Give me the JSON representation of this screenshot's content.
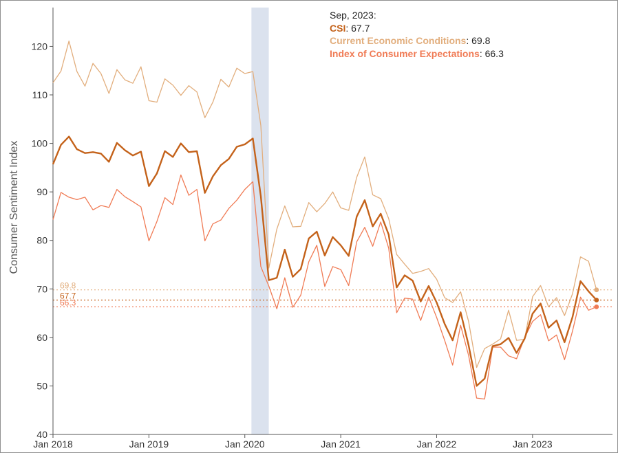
{
  "tooltip": {
    "date": "Sep, 2023:",
    "rows": [
      {
        "name": "CSI",
        "value": "67.7",
        "color": "#c4621a"
      },
      {
        "name": "Current Economic Conditions",
        "value": "69.8",
        "color": "#e2ae7d"
      },
      {
        "name": "Index of Consumer Expectations",
        "value": "66.3",
        "color": "#f07b55"
      }
    ]
  },
  "chart_data": {
    "type": "line",
    "title": "",
    "xlabel": "",
    "ylabel": "Consumer Sentiment Index",
    "ylim": [
      40,
      128
    ],
    "yticks": [
      40,
      50,
      60,
      70,
      80,
      90,
      100,
      110,
      120
    ],
    "xlim": [
      "2018-01",
      "2023-11"
    ],
    "xticks": [
      {
        "label": "Jan 2018",
        "date": "2018-01"
      },
      {
        "label": "Jan 2019",
        "date": "2019-01"
      },
      {
        "label": "Jan 2020",
        "date": "2020-01"
      },
      {
        "label": "Jan 2021",
        "date": "2021-01"
      },
      {
        "label": "Jan 2022",
        "date": "2022-01"
      },
      {
        "label": "Jan 2023",
        "date": "2023-01"
      }
    ],
    "x_start": "2018-01",
    "recession_shading": {
      "start": "2020-02",
      "end": "2020-04",
      "color": "#dbe2ee"
    },
    "end_labels": [
      {
        "label": "69.8",
        "value": 69.8,
        "color": "#e2ae7d"
      },
      {
        "label": "67.7",
        "value": 67.7,
        "color": "#c4621a"
      },
      {
        "label": "66.3",
        "value": 66.3,
        "color": "#f07b55"
      }
    ],
    "series": [
      {
        "name": "CSI",
        "color": "#c4621a",
        "values": [
          95.7,
          99.7,
          101.4,
          98.8,
          98.0,
          98.2,
          97.9,
          96.2,
          100.1,
          98.6,
          97.5,
          98.3,
          91.2,
          93.8,
          98.4,
          97.2,
          100.0,
          98.2,
          98.4,
          89.8,
          93.2,
          95.5,
          96.8,
          99.3,
          99.8,
          101.0,
          89.1,
          71.8,
          72.3,
          78.1,
          72.5,
          74.1,
          80.4,
          81.8,
          76.9,
          80.7,
          79.0,
          76.8,
          84.9,
          88.3,
          82.9,
          85.5,
          81.2,
          70.3,
          72.8,
          71.7,
          67.4,
          70.6,
          67.2,
          62.8,
          59.4,
          65.2,
          58.4,
          50.0,
          51.5,
          58.2,
          58.6,
          59.9,
          56.8,
          59.7,
          64.9,
          67.0,
          62.0,
          63.5,
          59.0,
          64.2,
          71.6,
          69.5,
          67.7
        ]
      },
      {
        "name": "Current Economic Conditions",
        "color": "#e2ae7d",
        "values": [
          112.5,
          114.9,
          121.1,
          114.8,
          111.8,
          116.5,
          114.4,
          110.3,
          115.2,
          113.1,
          112.4,
          115.8,
          108.8,
          108.5,
          113.3,
          112.0,
          109.9,
          111.9,
          110.6,
          105.3,
          108.5,
          113.2,
          111.6,
          115.5,
          114.4,
          114.8,
          103.7,
          74.3,
          82.3,
          87.1,
          82.8,
          82.9,
          87.8,
          85.9,
          87.6,
          90.0,
          86.7,
          86.2,
          93.0,
          97.2,
          89.4,
          88.6,
          84.5,
          77.1,
          75.1,
          73.2,
          73.6,
          74.2,
          72.0,
          68.2,
          67.2,
          69.4,
          63.3,
          53.8,
          57.7,
          58.6,
          59.7,
          65.6,
          59.4,
          59.6,
          68.4,
          70.7,
          66.3,
          68.2,
          64.5,
          69.0,
          76.6,
          75.7,
          69.8
        ]
      },
      {
        "name": "Index of Consumer Expectations",
        "color": "#f07b55",
        "values": [
          84.3,
          89.9,
          88.9,
          88.4,
          88.9,
          86.3,
          87.2,
          86.8,
          90.5,
          89.0,
          88.0,
          86.9,
          79.9,
          83.9,
          88.8,
          87.4,
          93.5,
          89.3,
          90.5,
          79.9,
          83.4,
          84.2,
          86.6,
          88.3,
          90.5,
          92.1,
          74.6,
          70.6,
          65.9,
          72.3,
          66.2,
          68.7,
          75.6,
          79.0,
          70.5,
          74.6,
          74.0,
          70.7,
          79.7,
          82.7,
          78.8,
          83.8,
          78.4,
          65.1,
          68.1,
          67.9,
          63.5,
          68.3,
          64.1,
          59.4,
          54.3,
          62.5,
          56.3,
          47.5,
          47.3,
          58.0,
          58.0,
          56.2,
          55.6,
          59.9,
          63.3,
          64.7,
          59.3,
          60.5,
          55.4,
          61.3,
          68.3,
          65.6,
          66.3
        ]
      }
    ]
  }
}
